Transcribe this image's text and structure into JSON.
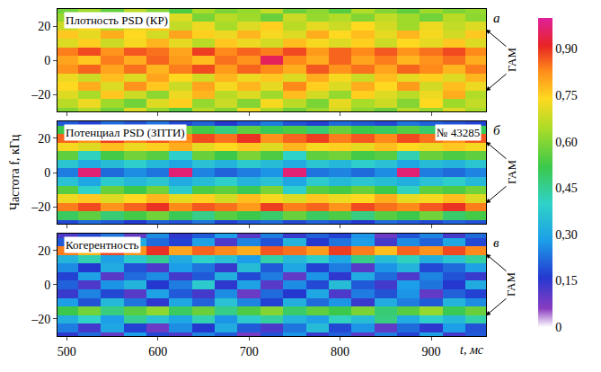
{
  "chart_data": {
    "type": "heatmap",
    "x_label": "t, мс",
    "y_label": "Частота f, кГц",
    "xlim": [
      490,
      960
    ],
    "xticks": [
      500,
      600,
      700,
      800,
      900
    ],
    "ylim": [
      -30,
      30
    ],
    "yticks": [
      {
        "value": -20,
        "label": "–20"
      },
      0,
      20
    ],
    "colorbar": {
      "range": [
        0,
        1
      ],
      "ticks": [
        0,
        {
          "value": 0.15,
          "label": "0,15"
        },
        {
          "value": 0.3,
          "label": "0,30"
        },
        {
          "value": 0.45,
          "label": "0,45"
        },
        {
          "value": 0.6,
          "label": "0,60"
        },
        {
          "value": 0.75,
          "label": "0,75"
        },
        {
          "value": 0.9,
          "label": "0,90"
        }
      ]
    },
    "x": [
      500,
      525,
      550,
      575,
      600,
      625,
      650,
      675,
      700,
      725,
      750,
      775,
      800,
      825,
      850,
      875,
      900,
      925,
      950
    ],
    "y": [
      -30,
      -25,
      -20,
      -15,
      -10,
      -5,
      0,
      5,
      10,
      15,
      20,
      25,
      30
    ],
    "panels": [
      {
        "letter": "а",
        "title": "Плотность PSD (КР)",
        "annotation": "ГАМ",
        "gam_f": [
          18,
          -18
        ],
        "cells": [
          [
            0.6,
            0.65,
            0.58,
            0.7,
            0.62,
            0.55,
            0.66,
            0.6,
            0.72,
            0.64,
            0.58,
            0.63,
            0.69,
            0.61,
            0.57,
            0.66,
            0.62,
            0.7,
            0.64
          ],
          [
            0.66,
            0.72,
            0.63,
            0.58,
            0.7,
            0.75,
            0.62,
            0.68,
            0.6,
            0.73,
            0.66,
            0.59,
            0.71,
            0.64,
            0.68,
            0.6,
            0.74,
            0.63,
            0.67
          ],
          [
            0.7,
            0.64,
            0.76,
            0.68,
            0.61,
            0.72,
            0.78,
            0.66,
            0.7,
            0.63,
            0.77,
            0.69,
            0.62,
            0.75,
            0.7,
            0.66,
            0.72,
            0.79,
            0.65
          ],
          [
            0.74,
            0.79,
            0.7,
            0.82,
            0.76,
            0.68,
            0.8,
            0.73,
            0.78,
            0.71,
            0.83,
            0.75,
            0.7,
            0.79,
            0.74,
            0.81,
            0.69,
            0.77,
            0.72
          ],
          [
            0.72,
            0.68,
            0.77,
            0.7,
            0.8,
            0.74,
            0.69,
            0.78,
            0.72,
            0.76,
            0.7,
            0.79,
            0.73,
            0.68,
            0.77,
            0.71,
            0.75,
            0.7,
            0.78
          ],
          [
            0.82,
            0.86,
            0.8,
            0.85,
            0.78,
            0.84,
            0.88,
            0.81,
            0.86,
            0.83,
            0.79,
            0.87,
            0.82,
            0.85,
            0.8,
            0.86,
            0.83,
            0.78,
            0.84
          ],
          [
            0.8,
            0.76,
            0.84,
            0.79,
            0.86,
            0.81,
            0.77,
            0.85,
            0.82,
            0.95,
            0.83,
            0.79,
            0.86,
            0.8,
            0.84,
            0.78,
            0.82,
            0.85,
            0.79
          ],
          [
            0.84,
            0.88,
            0.82,
            0.87,
            0.85,
            0.8,
            0.89,
            0.83,
            0.86,
            0.84,
            0.88,
            0.81,
            0.86,
            0.83,
            0.87,
            0.82,
            0.85,
            0.88,
            0.83
          ],
          [
            0.7,
            0.75,
            0.68,
            0.73,
            0.78,
            0.71,
            0.66,
            0.76,
            0.72,
            0.69,
            0.77,
            0.73,
            0.7,
            0.75,
            0.68,
            0.74,
            0.71,
            0.76,
            0.7
          ],
          [
            0.76,
            0.71,
            0.79,
            0.74,
            0.69,
            0.8,
            0.75,
            0.72,
            0.78,
            0.73,
            0.7,
            0.79,
            0.74,
            0.77,
            0.71,
            0.78,
            0.73,
            0.69,
            0.76
          ],
          [
            0.68,
            0.73,
            0.65,
            0.71,
            0.76,
            0.67,
            0.72,
            0.64,
            0.7,
            0.75,
            0.66,
            0.71,
            0.68,
            0.74,
            0.69,
            0.63,
            0.72,
            0.67,
            0.7
          ],
          [
            0.62,
            0.58,
            0.67,
            0.61,
            0.64,
            0.7,
            0.59,
            0.66,
            0.63,
            0.57,
            0.68,
            0.62,
            0.65,
            0.6,
            0.67,
            0.63,
            0.58,
            0.66,
            0.61
          ],
          [
            0.58,
            0.63,
            0.56,
            0.66,
            0.6,
            0.54,
            0.64,
            0.59,
            0.62,
            0.67,
            0.57,
            0.61,
            0.55,
            0.65,
            0.6,
            0.56,
            0.63,
            0.59,
            0.62
          ]
        ]
      },
      {
        "letter": "б",
        "title": "Потенциал PSD (ЗПТИ)",
        "note": "№ 43285",
        "annotation": "ГАМ",
        "gam_f": [
          18,
          -18
        ],
        "cells": [
          [
            0.18,
            0.22,
            0.2,
            0.16,
            0.21,
            0.19,
            0.23,
            0.17,
            0.2,
            0.22,
            0.18,
            0.21,
            0.19,
            0.16,
            0.22,
            0.2,
            0.18,
            0.21,
            0.19
          ],
          [
            0.5,
            0.56,
            0.48,
            0.53,
            0.58,
            0.51,
            0.46,
            0.55,
            0.52,
            0.49,
            0.57,
            0.5,
            0.54,
            0.47,
            0.55,
            0.52,
            0.58,
            0.49,
            0.53
          ],
          [
            0.84,
            0.88,
            0.82,
            0.86,
            0.9,
            0.83,
            0.87,
            0.85,
            0.81,
            0.89,
            0.84,
            0.86,
            0.82,
            0.88,
            0.85,
            0.83,
            0.87,
            0.9,
            0.84
          ],
          [
            0.72,
            0.76,
            0.7,
            0.74,
            0.78,
            0.71,
            0.75,
            0.69,
            0.77,
            0.73,
            0.7,
            0.76,
            0.72,
            0.74,
            0.79,
            0.71,
            0.73,
            0.77,
            0.7
          ],
          [
            0.55,
            0.4,
            0.57,
            0.52,
            0.58,
            0.38,
            0.54,
            0.56,
            0.51,
            0.59,
            0.39,
            0.55,
            0.53,
            0.57,
            0.52,
            0.41,
            0.56,
            0.54,
            0.58
          ],
          [
            0.36,
            0.3,
            0.38,
            0.34,
            0.37,
            0.31,
            0.35,
            0.39,
            0.33,
            0.36,
            0.3,
            0.38,
            0.34,
            0.37,
            0.35,
            0.32,
            0.36,
            0.39,
            0.34
          ],
          [
            0.24,
            0.97,
            0.22,
            0.26,
            0.23,
            0.97,
            0.25,
            0.21,
            0.24,
            0.27,
            0.97,
            0.23,
            0.25,
            0.22,
            0.26,
            0.97,
            0.24,
            0.22,
            0.25
          ],
          [
            0.37,
            0.31,
            0.35,
            0.39,
            0.34,
            0.3,
            0.36,
            0.33,
            0.38,
            0.35,
            0.31,
            0.37,
            0.34,
            0.39,
            0.36,
            0.3,
            0.35,
            0.33,
            0.37
          ],
          [
            0.56,
            0.41,
            0.53,
            0.58,
            0.55,
            0.39,
            0.57,
            0.52,
            0.59,
            0.54,
            0.4,
            0.56,
            0.58,
            0.53,
            0.55,
            0.42,
            0.57,
            0.54,
            0.56
          ],
          [
            0.73,
            0.7,
            0.77,
            0.72,
            0.75,
            0.79,
            0.71,
            0.74,
            0.76,
            0.7,
            0.78,
            0.73,
            0.75,
            0.71,
            0.77,
            0.74,
            0.72,
            0.76,
            0.73
          ],
          [
            0.86,
            0.82,
            0.89,
            0.84,
            0.87,
            0.83,
            0.88,
            0.85,
            0.9,
            0.82,
            0.86,
            0.89,
            0.84,
            0.87,
            0.83,
            0.88,
            0.85,
            0.82,
            0.87
          ],
          [
            0.52,
            0.57,
            0.49,
            0.55,
            0.5,
            0.58,
            0.53,
            0.47,
            0.56,
            0.51,
            0.54,
            0.48,
            0.57,
            0.52,
            0.5,
            0.55,
            0.49,
            0.56,
            0.51
          ],
          [
            0.2,
            0.17,
            0.22,
            0.19,
            0.23,
            0.18,
            0.21,
            0.16,
            0.2,
            0.24,
            0.19,
            0.17,
            0.22,
            0.2,
            0.18,
            0.23,
            0.21,
            0.19,
            0.17
          ]
        ]
      },
      {
        "letter": "в",
        "title": "Когерентность",
        "annotation": "ГАМ",
        "gam_f": [
          18,
          -18
        ],
        "cells": [
          [
            0.15,
            0.22,
            0.1,
            0.28,
            0.18,
            0.12,
            0.25,
            0.2,
            0.08,
            0.19,
            0.27,
            0.14,
            0.21,
            0.11,
            0.24,
            0.17,
            0.29,
            0.13,
            0.2
          ],
          [
            0.24,
            0.13,
            0.3,
            0.17,
            0.09,
            0.26,
            0.16,
            0.31,
            0.2,
            0.12,
            0.23,
            0.35,
            0.18,
            0.27,
            0.1,
            0.22,
            0.15,
            0.28,
            0.19
          ],
          [
            0.32,
            0.4,
            0.28,
            0.45,
            0.36,
            0.3,
            0.42,
            0.27,
            0.38,
            0.44,
            0.33,
            0.29,
            0.41,
            0.35,
            0.47,
            0.31,
            0.39,
            0.34,
            0.43
          ],
          [
            0.52,
            0.58,
            0.47,
            0.55,
            0.61,
            0.5,
            0.57,
            0.46,
            0.54,
            0.6,
            0.49,
            0.56,
            0.52,
            0.59,
            0.48,
            0.55,
            0.62,
            0.51,
            0.57
          ],
          [
            0.28,
            0.19,
            0.34,
            0.23,
            0.15,
            0.3,
            0.21,
            0.36,
            0.25,
            0.17,
            0.32,
            0.22,
            0.27,
            0.14,
            0.31,
            0.24,
            0.2,
            0.33,
            0.26
          ],
          [
            0.14,
            0.25,
            0.18,
            0.11,
            0.29,
            0.2,
            0.13,
            0.26,
            0.09,
            0.22,
            0.16,
            0.3,
            0.12,
            0.24,
            0.19,
            0.27,
            0.1,
            0.21,
            0.17
          ],
          [
            0.21,
            0.12,
            0.27,
            0.33,
            0.16,
            0.24,
            0.38,
            0.15,
            0.29,
            0.11,
            0.26,
            0.18,
            0.35,
            0.2,
            0.13,
            0.28,
            0.23,
            0.16,
            0.31
          ],
          [
            0.17,
            0.29,
            0.11,
            0.22,
            0.26,
            0.13,
            0.2,
            0.32,
            0.18,
            0.24,
            0.1,
            0.27,
            0.15,
            0.31,
            0.22,
            0.12,
            0.25,
            0.19,
            0.14
          ],
          [
            0.26,
            0.16,
            0.31,
            0.19,
            0.12,
            0.28,
            0.23,
            0.14,
            0.35,
            0.2,
            0.3,
            0.17,
            0.24,
            0.11,
            0.27,
            0.33,
            0.18,
            0.22,
            0.29
          ],
          [
            0.33,
            0.42,
            0.29,
            0.38,
            0.45,
            0.31,
            0.4,
            0.36,
            0.28,
            0.43,
            0.34,
            0.39,
            0.3,
            0.46,
            0.35,
            0.41,
            0.32,
            0.37,
            0.44
          ],
          [
            0.84,
            0.78,
            0.88,
            0.82,
            0.9,
            0.8,
            0.86,
            0.83,
            0.79,
            0.87,
            0.85,
            0.81,
            0.89,
            0.84,
            0.77,
            0.86,
            0.82,
            0.88,
            0.83
          ],
          [
            0.2,
            0.27,
            0.14,
            0.31,
            0.22,
            0.17,
            0.29,
            0.12,
            0.25,
            0.19,
            0.33,
            0.16,
            0.23,
            0.28,
            0.13,
            0.26,
            0.21,
            0.3,
            0.18
          ],
          [
            0.12,
            0.18,
            0.23,
            0.1,
            0.26,
            0.15,
            0.2,
            0.28,
            0.11,
            0.24,
            0.14,
            0.21,
            0.17,
            0.27,
            0.09,
            0.19,
            0.25,
            0.13,
            0.22
          ]
        ]
      }
    ]
  }
}
